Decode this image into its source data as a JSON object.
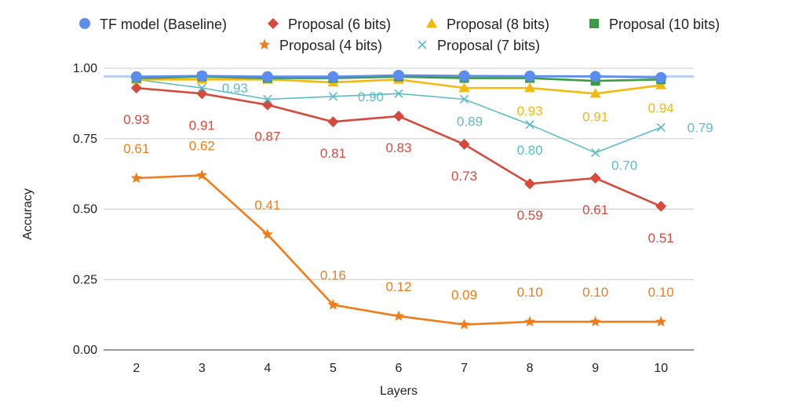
{
  "chart_data": {
    "type": "line",
    "xlabel": "Layers",
    "ylabel": "Accuracy",
    "categories": [
      "2",
      "3",
      "4",
      "5",
      "6",
      "7",
      "8",
      "9",
      "10"
    ],
    "ylim": [
      0,
      1
    ],
    "yticks": [
      "0.00",
      "0.25",
      "0.50",
      "0.75",
      "1.00"
    ],
    "grid": true,
    "legend": "top",
    "series": [
      {
        "name": "TF model (Baseline)",
        "color": "#5B8DEF",
        "marker": "circle",
        "values": [
          0.97,
          0.973,
          0.97,
          0.97,
          0.975,
          0.973,
          0.972,
          0.971,
          0.967
        ],
        "labels": []
      },
      {
        "name": "Proposal (6 bits)",
        "color": "#D64A3B",
        "marker": "diamond",
        "values": [
          0.93,
          0.91,
          0.87,
          0.81,
          0.83,
          0.73,
          0.59,
          0.61,
          0.51
        ],
        "labels": [
          "0.93",
          "0.91",
          "0.87",
          "0.81",
          "0.83",
          "0.73",
          "0.59",
          "0.61",
          "0.51"
        ]
      },
      {
        "name": "Proposal (8 bits)",
        "color": "#F2B90F",
        "marker": "triangle",
        "values": [
          0.96,
          0.96,
          0.96,
          0.95,
          0.96,
          0.93,
          0.93,
          0.91,
          0.94
        ],
        "labels": [
          "",
          "",
          "",
          "",
          "",
          "",
          "0.93",
          "0.91",
          "0.94"
        ]
      },
      {
        "name": "Proposal (10 bits)",
        "color": "#3C9C45",
        "marker": "square",
        "values": [
          0.965,
          0.97,
          0.965,
          0.965,
          0.97,
          0.965,
          0.965,
          0.955,
          0.96
        ],
        "labels": []
      },
      {
        "name": "Proposal (4 bits)",
        "color": "#F07D1A",
        "marker": "star",
        "values": [
          0.61,
          0.62,
          0.41,
          0.16,
          0.12,
          0.09,
          0.1,
          0.1,
          0.1
        ],
        "labels": [
          "0.61",
          "0.62",
          "0.41",
          "0.16",
          "0.12",
          "0.09",
          "0.10",
          "0.10",
          "0.10"
        ]
      },
      {
        "name": "Proposal (7 bits)",
        "color": "#5BBCC8",
        "marker": "x",
        "values": [
          0.96,
          0.93,
          0.89,
          0.9,
          0.91,
          0.89,
          0.8,
          0.7,
          0.79
        ],
        "labels": [
          "",
          "0.93",
          "",
          "0.90",
          "",
          "0.89",
          "0.80",
          "0.70",
          "0.79"
        ]
      }
    ]
  }
}
